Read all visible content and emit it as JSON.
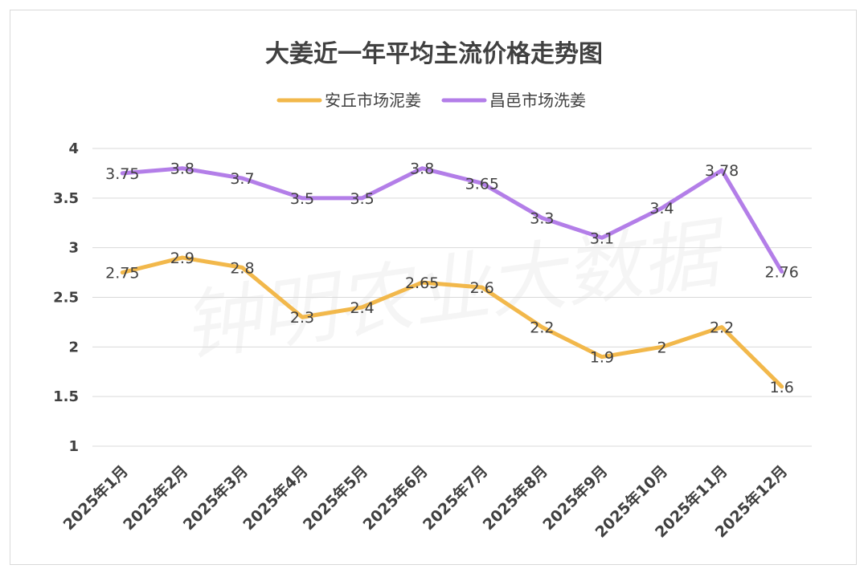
{
  "chart_data": {
    "type": "line",
    "title": "大姜近一年平均主流价格走势图",
    "watermark": "钟明农业大数据",
    "categories": [
      "2025年1月",
      "2025年2月",
      "2025年3月",
      "2025年4月",
      "2025年5月",
      "2025年6月",
      "2025年7月",
      "2025年8月",
      "2025年9月",
      "2025年10月",
      "2025年11月",
      "2025年12月"
    ],
    "series": [
      {
        "name": "安丘市场泥姜",
        "color": "#f2b84b",
        "values": [
          2.75,
          2.9,
          2.8,
          2.3,
          2.4,
          2.65,
          2.6,
          2.2,
          1.9,
          2,
          2.2,
          1.6
        ]
      },
      {
        "name": "昌邑市场洗姜",
        "color": "#b37ee8",
        "values": [
          3.75,
          3.8,
          3.7,
          3.5,
          3.5,
          3.8,
          3.65,
          3.3,
          3.1,
          3.4,
          3.78,
          2.76
        ]
      }
    ],
    "yticks": [
      "1",
      "1.5",
      "2",
      "2.5",
      "3",
      "3.5",
      "4"
    ],
    "ylim": [
      1,
      4
    ],
    "grid": true,
    "legend_position": "top-center"
  }
}
